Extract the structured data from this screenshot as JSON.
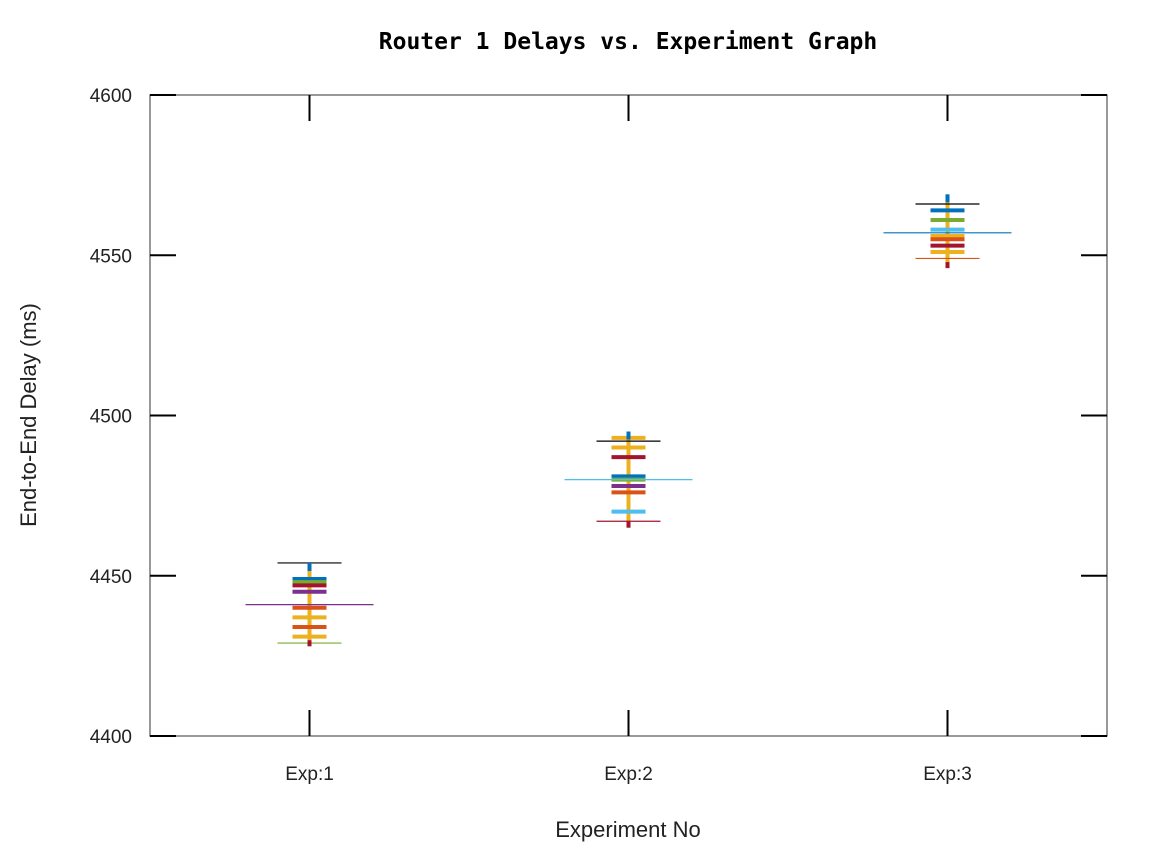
{
  "chart_data": {
    "type": "scatter",
    "title": "Router 1 Delays vs. Experiment Graph",
    "xlabel": "Experiment No",
    "ylabel": "End-to-End Delay (ms)",
    "ylim": [
      4400,
      4600
    ],
    "yticks": [
      "4400",
      "4450",
      "4500",
      "4550",
      "4600"
    ],
    "categories": [
      "Exp:1",
      "Exp:2",
      "Exp:3"
    ],
    "grid": false,
    "groups": [
      {
        "category": "Exp:1",
        "max": 4454,
        "mean": 4441,
        "min": 4429,
        "points": [
          {
            "value": 4449,
            "color": "#0072bd"
          },
          {
            "value": 4448,
            "color": "#77ac30"
          },
          {
            "value": 4447,
            "color": "#a2142f"
          },
          {
            "value": 4445,
            "color": "#7e2f8e"
          },
          {
            "value": 4440,
            "color": "#d95319"
          },
          {
            "value": 4437,
            "color": "#edb120"
          },
          {
            "value": 4434,
            "color": "#d95319"
          },
          {
            "value": 4431,
            "color": "#edb120"
          }
        ],
        "stem": {
          "low": 4428,
          "high": 4454,
          "color": "#edb120"
        },
        "max_color": "#000000",
        "mean_color": "#7e2f8e",
        "min_color": "#77ac30"
      },
      {
        "category": "Exp:2",
        "max": 4492,
        "mean": 4480,
        "min": 4467,
        "points": [
          {
            "value": 4493,
            "color": "#edb120"
          },
          {
            "value": 4490,
            "color": "#edb120"
          },
          {
            "value": 4487,
            "color": "#a2142f"
          },
          {
            "value": 4481,
            "color": "#0072bd"
          },
          {
            "value": 4480,
            "color": "#77ac30"
          },
          {
            "value": 4478,
            "color": "#7e2f8e"
          },
          {
            "value": 4476,
            "color": "#d95319"
          },
          {
            "value": 4470,
            "color": "#4dbeee"
          }
        ],
        "stem": {
          "low": 4465,
          "high": 4495,
          "color": "#edb120"
        },
        "max_color": "#000000",
        "mean_color": "#4dbeee",
        "min_color": "#a2142f"
      },
      {
        "category": "Exp:3",
        "max": 4566,
        "mean": 4557,
        "min": 4549,
        "points": [
          {
            "value": 4564,
            "color": "#0072bd"
          },
          {
            "value": 4561,
            "color": "#77ac30"
          },
          {
            "value": 4558,
            "color": "#4dbeee"
          },
          {
            "value": 4556,
            "color": "#edb120"
          },
          {
            "value": 4555,
            "color": "#d95319"
          },
          {
            "value": 4553,
            "color": "#a2142f"
          },
          {
            "value": 4551,
            "color": "#edb120"
          }
        ],
        "stem": {
          "low": 4546,
          "high": 4569,
          "color": "#edb120"
        },
        "max_color": "#000000",
        "mean_color": "#0072bd",
        "min_color": "#d95319"
      }
    ]
  }
}
